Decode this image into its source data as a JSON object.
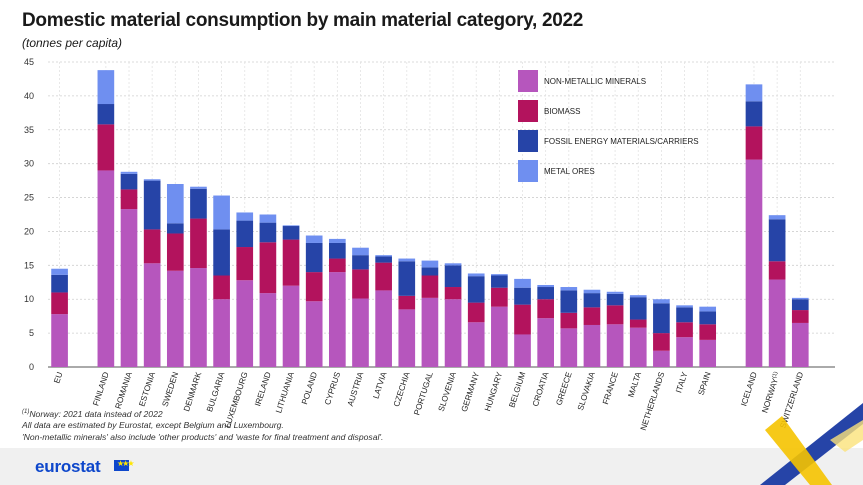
{
  "header": {
    "title": "Domestic material consumption by main material category, 2022",
    "subtitle": "(tonnes per capita)"
  },
  "notes": [
    "Norway: 2021 data instead of 2022",
    "All data are estimated by Eurostat, except Belgium and Luxembourg.",
    "'Non-metallic minerals' also include 'other products' and 'waste for final treatment and disposal'."
  ],
  "notes_sup": "(1)",
  "brand": {
    "name": "eurostat",
    "flag_stars": "★★★"
  },
  "chart_data": {
    "type": "bar",
    "stacked": true,
    "categories": [
      "EU",
      "FINLAND",
      "ROMANIA",
      "ESTONIA",
      "SWEDEN",
      "DENMARK",
      "BULGARIA",
      "LUXEMBOURG",
      "IRELAND",
      "LITHUANIA",
      "POLAND",
      "CYPRUS",
      "AUSTRIA",
      "LATVIA",
      "CZECHIA",
      "PORTUGAL",
      "SLOVENIA",
      "GERMANY",
      "HUNGARY",
      "BELGIUM",
      "CROATIA",
      "GREECE",
      "SLOVAKIA",
      "FRANCE",
      "MALTA",
      "NETHERLANDS",
      "ITALY",
      "SPAIN",
      "ICELAND",
      "NORWAY",
      "SWITZERLAND"
    ],
    "category_superscripts": {
      "NORWAY": "(1)"
    },
    "groups": [
      [
        0,
        0
      ],
      [
        1,
        27
      ],
      [
        28,
        30
      ]
    ],
    "series": [
      {
        "name": "NON-METALLIC MINERALS",
        "color": "#b656bd",
        "values": [
          7.8,
          29.0,
          23.3,
          15.3,
          14.2,
          14.6,
          10.0,
          12.8,
          10.9,
          12.0,
          9.7,
          14.0,
          10.1,
          11.3,
          8.5,
          10.2,
          10.0,
          6.6,
          8.9,
          4.8,
          7.2,
          5.7,
          6.2,
          6.3,
          5.8,
          2.4,
          4.4,
          4.0,
          30.6,
          12.9,
          6.5
        ]
      },
      {
        "name": "BIOMASS",
        "color": "#b3135d",
        "values": [
          3.2,
          6.8,
          2.9,
          5.0,
          5.5,
          7.3,
          3.5,
          4.9,
          7.5,
          6.8,
          4.3,
          2.0,
          4.3,
          4.1,
          2.0,
          3.3,
          1.8,
          2.9,
          2.8,
          4.4,
          2.8,
          2.3,
          2.6,
          2.8,
          1.2,
          2.6,
          2.2,
          2.3,
          4.9,
          2.7,
          1.9
        ]
      },
      {
        "name": "FOSSIL ENERGY MATERIALS/CARRIERS",
        "color": "#2644a7",
        "values": [
          2.6,
          3.0,
          2.3,
          7.2,
          1.5,
          4.4,
          6.8,
          3.9,
          2.9,
          2.0,
          4.3,
          2.3,
          2.1,
          0.9,
          5.1,
          1.2,
          3.2,
          3.9,
          1.8,
          2.5,
          1.8,
          3.3,
          2.1,
          1.7,
          3.3,
          4.4,
          2.2,
          1.9,
          3.7,
          6.2,
          1.6
        ]
      },
      {
        "name": "METAL ORES",
        "color": "#6f8ff0",
        "values": [
          0.9,
          5.0,
          0.3,
          0.2,
          5.8,
          0.3,
          5.0,
          1.2,
          1.2,
          0.1,
          1.1,
          0.6,
          1.1,
          0.2,
          0.4,
          1.0,
          0.3,
          0.4,
          0.2,
          1.3,
          0.3,
          0.5,
          0.5,
          0.3,
          0.3,
          0.6,
          0.3,
          0.7,
          2.5,
          0.6,
          0.2
        ]
      }
    ],
    "ylim": [
      0,
      45
    ],
    "yticks": [
      0,
      5,
      10,
      15,
      20,
      25,
      30,
      35,
      40,
      45
    ],
    "grid": true,
    "legend_position": "top-right"
  }
}
